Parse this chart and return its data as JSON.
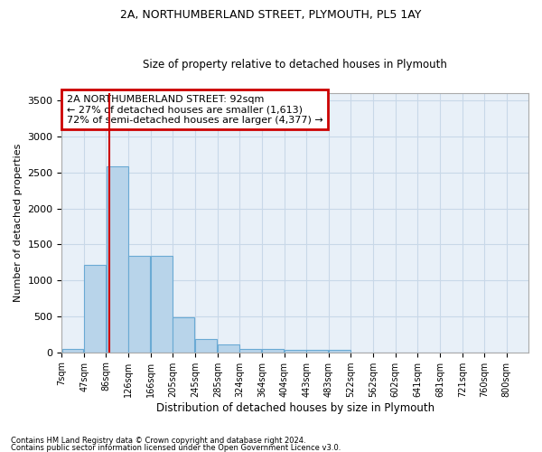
{
  "title1": "2A, NORTHUMBERLAND STREET, PLYMOUTH, PL5 1AY",
  "title2": "Size of property relative to detached houses in Plymouth",
  "xlabel": "Distribution of detached houses by size in Plymouth",
  "ylabel": "Number of detached properties",
  "footnote1": "Contains HM Land Registry data © Crown copyright and database right 2024.",
  "footnote2": "Contains public sector information licensed under the Open Government Licence v3.0.",
  "annotation_line1": "2A NORTHUMBERLAND STREET: 92sqm",
  "annotation_line2": "← 27% of detached houses are smaller (1,613)",
  "annotation_line3": "72% of semi-detached houses are larger (4,377) →",
  "bar_left_edges": [
    7,
    47,
    86,
    126,
    166,
    205,
    245,
    285,
    324,
    364,
    404,
    443,
    483,
    522,
    562,
    602,
    641,
    681,
    721,
    760
  ],
  "bar_widths": [
    39,
    39,
    39,
    39,
    39,
    39,
    39,
    39,
    39,
    39,
    39,
    39,
    39,
    39,
    39,
    39,
    39,
    39,
    39,
    39
  ],
  "bar_heights": [
    50,
    1220,
    2580,
    1340,
    1340,
    490,
    190,
    105,
    50,
    50,
    30,
    30,
    30,
    0,
    0,
    0,
    0,
    0,
    0,
    0
  ],
  "tick_labels": [
    "7sqm",
    "47sqm",
    "86sqm",
    "126sqm",
    "166sqm",
    "205sqm",
    "245sqm",
    "285sqm",
    "324sqm",
    "364sqm",
    "404sqm",
    "443sqm",
    "483sqm",
    "522sqm",
    "562sqm",
    "602sqm",
    "641sqm",
    "681sqm",
    "721sqm",
    "760sqm",
    "800sqm"
  ],
  "bar_color": "#b8d4ea",
  "bar_edge_color": "#6aaad4",
  "grid_color": "#c8d8e8",
  "bg_color": "#e8f0f8",
  "property_line_x": 92,
  "property_line_color": "#cc0000",
  "annotation_box_color": "#cc0000",
  "ylim": [
    0,
    3600
  ],
  "yticks": [
    0,
    500,
    1000,
    1500,
    2000,
    2500,
    3000,
    3500
  ],
  "title1_fontsize": 9,
  "title2_fontsize": 8.5
}
